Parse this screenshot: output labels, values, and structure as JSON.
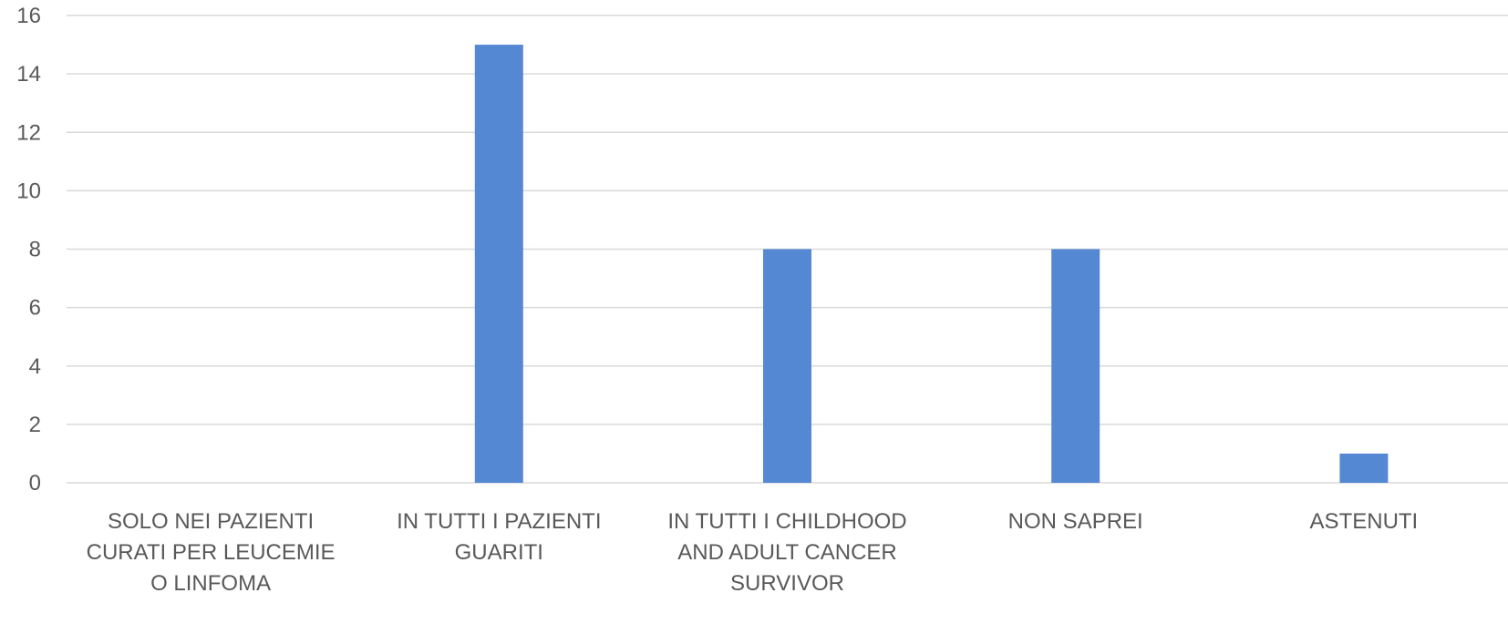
{
  "chart_data": {
    "type": "bar",
    "categories": [
      "SOLO NEI PAZIENTI CURATI PER LEUCEMIE O LINFOMA",
      "IN TUTTI I PAZIENTI GUARITI",
      "IN TUTTI I CHILDHOOD AND ADULT CANCER SURVIVOR",
      "NON SAPREI",
      "ASTENUTI"
    ],
    "category_lines": [
      [
        "SOLO NEI PAZIENTI",
        "CURATI PER LEUCEMIE",
        "O LINFOMA"
      ],
      [
        "IN TUTTI I PAZIENTI",
        "GUARITI"
      ],
      [
        "IN TUTTI I CHILDHOOD",
        "AND ADULT CANCER",
        "SURVIVOR"
      ],
      [
        "NON SAPREI"
      ],
      [
        "ASTENUTI"
      ]
    ],
    "values": [
      0,
      15,
      8,
      8,
      1
    ],
    "ylim": [
      0,
      16
    ],
    "yticks": [
      0,
      2,
      4,
      6,
      8,
      10,
      12,
      14,
      16
    ],
    "grid": true,
    "title": "",
    "xlabel": "",
    "ylabel": ""
  },
  "colors": {
    "bar": "#5588D3",
    "grid": "#D9D9D9",
    "text": "#595959"
  }
}
